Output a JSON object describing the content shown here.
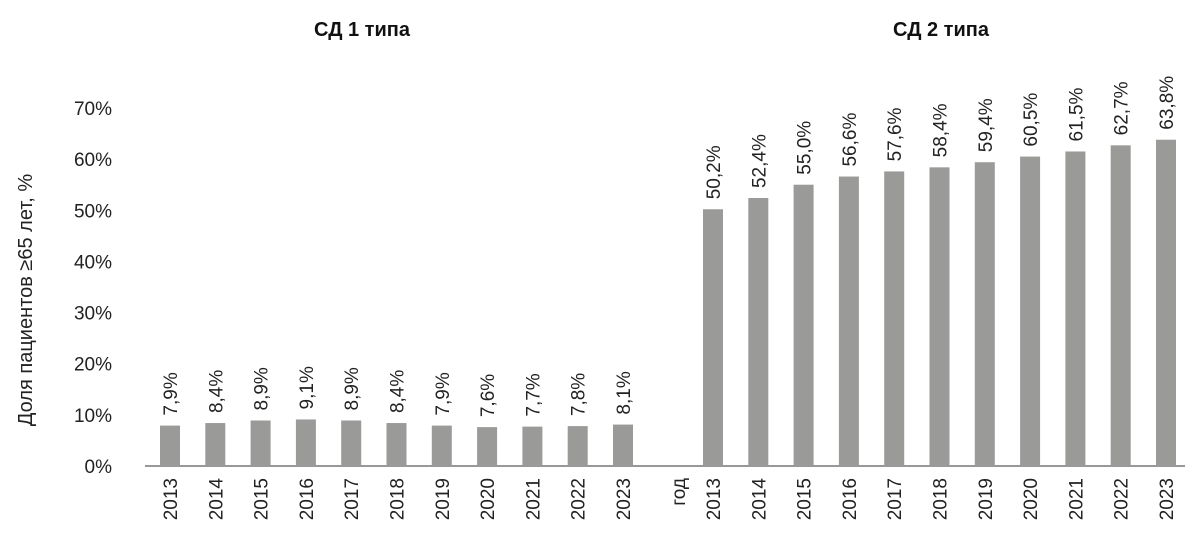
{
  "chart_data": {
    "type": "bar",
    "ylabel": "Доля пациентов ≥65 лет, %",
    "ylim": [
      0,
      70
    ],
    "yticks": [
      "0%",
      "10%",
      "20%",
      "30%",
      "40%",
      "50%",
      "60%",
      "70%"
    ],
    "separator_label": "год",
    "grid": false,
    "panels": [
      {
        "title": "СД 1 типа",
        "categories": [
          "2013",
          "2014",
          "2015",
          "2016",
          "2017",
          "2018",
          "2019",
          "2020",
          "2021",
          "2022",
          "2023"
        ],
        "values": [
          7.9,
          8.4,
          8.9,
          9.1,
          8.9,
          8.4,
          7.9,
          7.6,
          7.7,
          7.8,
          8.1
        ],
        "labels": [
          "7,9%",
          "8,4%",
          "8,9%",
          "9,1%",
          "8,9%",
          "8,4%",
          "7,9%",
          "7,6%",
          "7,7%",
          "7,8%",
          "8,1%"
        ]
      },
      {
        "title": "СД 2 типа",
        "categories": [
          "2013",
          "2014",
          "2015",
          "2016",
          "2017",
          "2018",
          "2019",
          "2020",
          "2021",
          "2022",
          "2023"
        ],
        "values": [
          50.2,
          52.4,
          55.0,
          56.6,
          57.6,
          58.4,
          59.4,
          60.5,
          61.5,
          62.7,
          63.8
        ],
        "labels": [
          "50,2%",
          "52,4%",
          "55,0%",
          "56,6%",
          "57,6%",
          "58,4%",
          "59,4%",
          "60,5%",
          "61,5%",
          "62,7%",
          "63,8%"
        ]
      }
    ]
  }
}
